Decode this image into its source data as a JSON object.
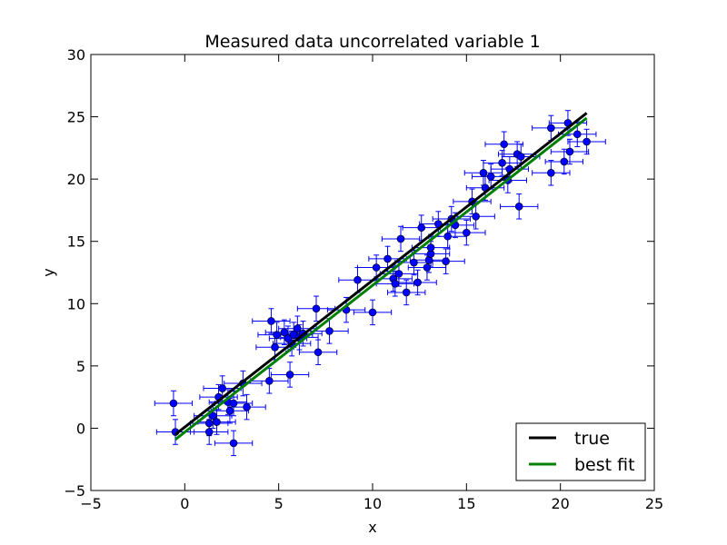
{
  "chart_data": {
    "type": "scatter",
    "title": "Measured data uncorrelated variable 1",
    "xlabel": "x",
    "ylabel": "y",
    "xlim": [
      -5,
      25
    ],
    "ylim": [
      -5,
      30
    ],
    "xticks": [
      -5,
      0,
      5,
      10,
      15,
      20,
      25
    ],
    "yticks": [
      -5,
      0,
      5,
      10,
      15,
      20,
      25,
      30
    ],
    "grid": false,
    "legend_position": "lower-right",
    "series": [
      {
        "kind": "errorbar-points",
        "color": "#0000ff",
        "xerr": 1.0,
        "yerr": 1.0,
        "points": [
          [
            -0.6,
            2.0
          ],
          [
            -0.5,
            -0.3
          ],
          [
            1.3,
            -0.3
          ],
          [
            1.3,
            0.4
          ],
          [
            1.7,
            0.5
          ],
          [
            1.5,
            1.0
          ],
          [
            1.8,
            2.5
          ],
          [
            2.0,
            3.2
          ],
          [
            2.3,
            2.1
          ],
          [
            2.4,
            1.4
          ],
          [
            2.6,
            2.0
          ],
          [
            2.6,
            -1.2
          ],
          [
            3.1,
            3.6
          ],
          [
            3.3,
            1.7
          ],
          [
            4.5,
            3.8
          ],
          [
            4.6,
            8.6
          ],
          [
            4.8,
            6.5
          ],
          [
            4.9,
            7.5
          ],
          [
            5.3,
            7.7
          ],
          [
            5.5,
            7.2
          ],
          [
            5.7,
            6.8
          ],
          [
            5.8,
            7.5
          ],
          [
            6.0,
            8.0
          ],
          [
            6.1,
            7.3
          ],
          [
            5.6,
            4.3
          ],
          [
            6.3,
            7.6
          ],
          [
            7.0,
            9.6
          ],
          [
            7.1,
            6.1
          ],
          [
            7.7,
            7.8
          ],
          [
            8.6,
            9.5
          ],
          [
            9.2,
            11.9
          ],
          [
            10.0,
            9.3
          ],
          [
            10.2,
            12.9
          ],
          [
            10.8,
            13.6
          ],
          [
            11.1,
            12.0
          ],
          [
            11.2,
            11.6
          ],
          [
            11.4,
            12.4
          ],
          [
            11.5,
            15.2
          ],
          [
            11.8,
            10.9
          ],
          [
            12.2,
            13.3
          ],
          [
            12.4,
            11.7
          ],
          [
            12.6,
            16.1
          ],
          [
            12.9,
            12.9
          ],
          [
            13.0,
            13.5
          ],
          [
            13.1,
            14.0
          ],
          [
            13.1,
            14.5
          ],
          [
            13.5,
            16.4
          ],
          [
            13.9,
            13.4
          ],
          [
            14.0,
            15.4
          ],
          [
            14.2,
            16.8
          ],
          [
            14.4,
            16.3
          ],
          [
            15.0,
            15.7
          ],
          [
            15.3,
            18.2
          ],
          [
            15.5,
            17.0
          ],
          [
            15.9,
            20.5
          ],
          [
            16.0,
            19.3
          ],
          [
            16.3,
            20.2
          ],
          [
            16.9,
            21.3
          ],
          [
            17.0,
            22.8
          ],
          [
            17.3,
            20.8
          ],
          [
            17.2,
            19.9
          ],
          [
            17.7,
            22.0
          ],
          [
            17.8,
            17.8
          ],
          [
            17.9,
            21.8
          ],
          [
            19.5,
            20.5
          ],
          [
            19.5,
            24.1
          ],
          [
            20.2,
            21.4
          ],
          [
            20.4,
            24.5
          ],
          [
            20.5,
            22.2
          ],
          [
            20.9,
            23.6
          ],
          [
            21.4,
            23.0
          ]
        ]
      },
      {
        "name": "true",
        "kind": "line",
        "color": "#000000",
        "x": [
          -0.5,
          21.4
        ],
        "y": [
          -0.5,
          25.3
        ]
      },
      {
        "name": "best fit",
        "kind": "line",
        "color": "#008000",
        "x": [
          -0.5,
          21.4
        ],
        "y": [
          -0.9,
          24.9
        ]
      }
    ]
  }
}
